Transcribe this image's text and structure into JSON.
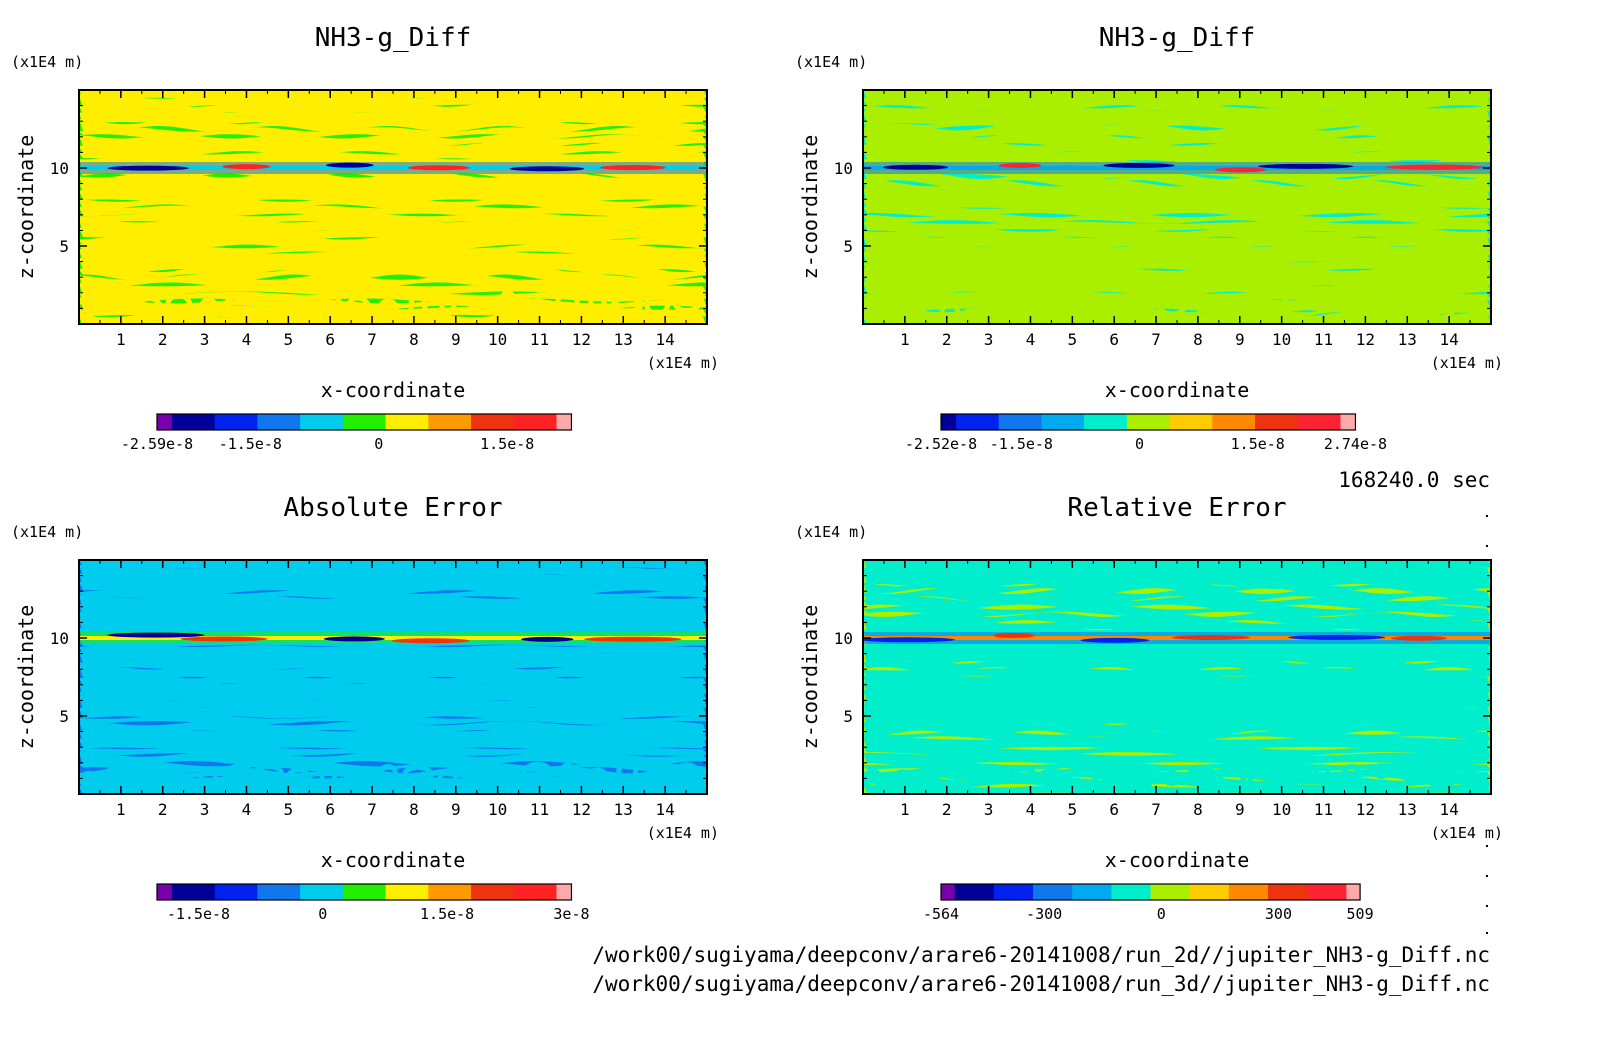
{
  "time_label": "168240.0 sec",
  "file_paths": [
    "/work00/sugiyama/deepconv/arare6-20141008/run_2d//jupiter_NH3-g_Diff.nc",
    "/work00/sugiyama/deepconv/arare6-20141008/run_3d//jupiter_NH3-g_Diff.nc"
  ],
  "chart_data": [
    {
      "type": "heatmap",
      "title": "NH3-g_Diff",
      "xlabel": "x-coordinate",
      "ylabel": "z-coordinate",
      "x_unit": "(x1E4 m)",
      "y_unit": "(x1E4 m)",
      "xlim": [
        0,
        15
      ],
      "ylim": [
        0,
        15
      ],
      "x_ticks": [
        "1",
        "2",
        "3",
        "4",
        "5",
        "6",
        "7",
        "8",
        "9",
        "10",
        "11",
        "12",
        "13",
        "14"
      ],
      "y_ticks": [
        "5",
        "10"
      ],
      "colorbar": {
        "colors": [
          "#7700aa",
          "#000099",
          "#0022ee",
          "#1177ee",
          "#00ccee",
          "#22ee00",
          "#ffee00",
          "#ff9900",
          "#ee3311",
          "#ff2222",
          "#ffaaaa"
        ],
        "labels": [
          "-2.59e-8",
          "-1.5e-8",
          "0",
          "1.5e-8"
        ],
        "label_values": [
          -2.59e-08,
          -1.5e-08,
          0,
          1.5e-08
        ],
        "range": [
          -2.59e-08,
          2.25e-08
        ]
      },
      "palette": [
        "#22ee00",
        "#ffee00",
        "#1177ee",
        "#00ccee",
        "#ff2222",
        "#000099"
      ]
    },
    {
      "type": "heatmap",
      "title": "NH3-g_Diff",
      "xlabel": "x-coordinate",
      "ylabel": "z-coordinate",
      "x_unit": "(x1E4 m)",
      "y_unit": "(x1E4 m)",
      "xlim": [
        0,
        15
      ],
      "ylim": [
        0,
        15
      ],
      "x_ticks": [
        "1",
        "2",
        "3",
        "4",
        "5",
        "6",
        "7",
        "8",
        "9",
        "10",
        "11",
        "12",
        "13",
        "14"
      ],
      "y_ticks": [
        "5",
        "10"
      ],
      "colorbar": {
        "colors": [
          "#000099",
          "#0022ee",
          "#1177ee",
          "#00aaee",
          "#00eecc",
          "#aaee00",
          "#ffcc00",
          "#ff8800",
          "#ee3311",
          "#ff2233",
          "#ffaaaa"
        ],
        "labels": [
          "-2.52e-8",
          "-1.5e-8",
          "0",
          "1.5e-8",
          "2.74e-8"
        ],
        "label_values": [
          -2.52e-08,
          -1.5e-08,
          0,
          1.5e-08,
          2.74e-08
        ],
        "range": [
          -2.52e-08,
          2.74e-08
        ]
      },
      "palette": [
        "#00eecc",
        "#aaee00",
        "#1177ee",
        "#00aaee",
        "#ff2233",
        "#000099"
      ]
    },
    {
      "type": "heatmap",
      "title": "Absolute Error",
      "xlabel": "x-coordinate",
      "ylabel": "z-coordinate",
      "x_unit": "(x1E4 m)",
      "y_unit": "(x1E4 m)",
      "xlim": [
        0,
        15
      ],
      "ylim": [
        0,
        15
      ],
      "x_ticks": [
        "1",
        "2",
        "3",
        "4",
        "5",
        "6",
        "7",
        "8",
        "9",
        "10",
        "11",
        "12",
        "13",
        "14"
      ],
      "y_ticks": [
        "5",
        "10"
      ],
      "colorbar": {
        "colors": [
          "#7700aa",
          "#000099",
          "#0022ee",
          "#1177ee",
          "#00ccee",
          "#22ee00",
          "#ffee00",
          "#ff9900",
          "#ee3311",
          "#ff2222",
          "#ffaaaa"
        ],
        "labels": [
          "-1.5e-8",
          "0",
          "1.5e-8",
          "3e-8"
        ],
        "label_values": [
          -1.5e-08,
          0,
          1.5e-08,
          3e-08
        ],
        "range": [
          -2e-08,
          3e-08
        ]
      },
      "palette": [
        "#1177ee",
        "#00ccee",
        "#22ee00",
        "#ffee00",
        "#ee3311",
        "#000099"
      ]
    },
    {
      "type": "heatmap",
      "title": "Relative Error",
      "xlabel": "x-coordinate",
      "ylabel": "z-coordinate",
      "x_unit": "(x1E4 m)",
      "y_unit": "(x1E4 m)",
      "xlim": [
        0,
        15
      ],
      "ylim": [
        0,
        15
      ],
      "x_ticks": [
        "1",
        "2",
        "3",
        "4",
        "5",
        "6",
        "7",
        "8",
        "9",
        "10",
        "11",
        "12",
        "13",
        "14"
      ],
      "y_ticks": [
        "5",
        "10"
      ],
      "colorbar": {
        "colors": [
          "#7700aa",
          "#000099",
          "#0022ee",
          "#1177ee",
          "#00aaee",
          "#00eecc",
          "#aaee00",
          "#ffcc00",
          "#ff8800",
          "#ee3311",
          "#ff2233",
          "#ffaaaa"
        ],
        "labels": [
          "-564",
          "-300",
          "0",
          "300",
          "509"
        ],
        "label_values": [
          -564,
          -300,
          0,
          300,
          509
        ],
        "range": [
          -564,
          509
        ]
      },
      "palette": [
        "#aaee00",
        "#00eecc",
        "#1177ee",
        "#ff8800",
        "#ee3311",
        "#0022ee"
      ]
    }
  ]
}
